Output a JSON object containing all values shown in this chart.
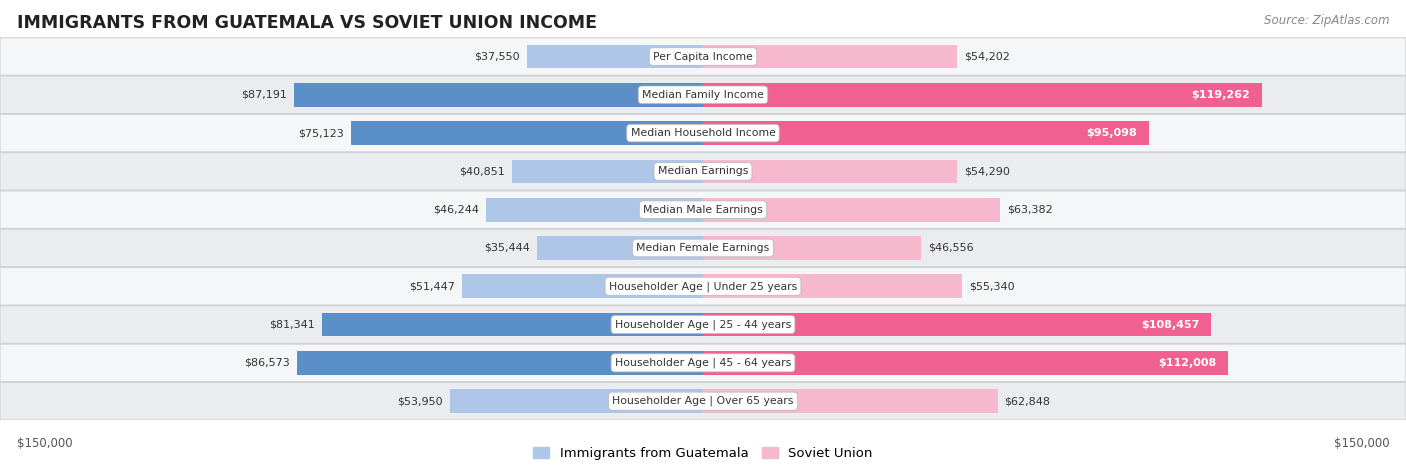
{
  "title": "IMMIGRANTS FROM GUATEMALA VS SOVIET UNION INCOME",
  "source": "Source: ZipAtlas.com",
  "categories": [
    "Per Capita Income",
    "Median Family Income",
    "Median Household Income",
    "Median Earnings",
    "Median Male Earnings",
    "Median Female Earnings",
    "Householder Age | Under 25 years",
    "Householder Age | 25 - 44 years",
    "Householder Age | 45 - 64 years",
    "Householder Age | Over 65 years"
  ],
  "guatemala_values": [
    37550,
    87191,
    75123,
    40851,
    46244,
    35444,
    51447,
    81341,
    86573,
    53950
  ],
  "soviet_values": [
    54202,
    119262,
    95098,
    54290,
    63382,
    46556,
    55340,
    108457,
    112008,
    62848
  ],
  "guatemala_labels": [
    "$37,550",
    "$87,191",
    "$75,123",
    "$40,851",
    "$46,244",
    "$35,444",
    "$51,447",
    "$81,341",
    "$86,573",
    "$53,950"
  ],
  "soviet_labels": [
    "$54,202",
    "$119,262",
    "$95,098",
    "$54,290",
    "$63,382",
    "$46,556",
    "$55,340",
    "$108,457",
    "$112,008",
    "$62,848"
  ],
  "guatemala_large": [
    false,
    true,
    true,
    false,
    false,
    false,
    false,
    true,
    true,
    false
  ],
  "soviet_large": [
    false,
    true,
    true,
    false,
    false,
    false,
    false,
    true,
    true,
    false
  ],
  "guatemala_color_light": "#aec6e8",
  "guatemala_color_dark": "#5b8fc7",
  "soviet_color_light": "#f5b8cc",
  "soviet_color_dark": "#f06090",
  "max_value": 150000,
  "background_color": "#ffffff",
  "legend_guatemala": "Immigrants from Guatemala",
  "legend_soviet": "Soviet Union",
  "bottom_left_label": "$150,000",
  "bottom_right_label": "$150,000",
  "row_colors": [
    "#f5f6f8",
    "#eaecf0"
  ]
}
